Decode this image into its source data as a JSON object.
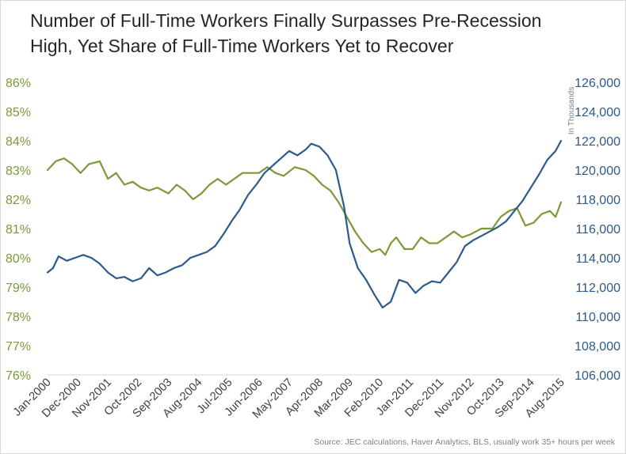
{
  "title_line1": "Number of Full-Time Workers Finally Surpasses Pre-Recession",
  "title_line2": "High, Yet Share of Full-Time Workers Yet to Recover",
  "source": "Source: JEC calculations, Haver Analytics, BLS, usually work 35+ hours per week",
  "chart_data": {
    "type": "line",
    "title": "Number of Full-Time Workers Finally Surpasses Pre-Recession High, Yet Share of Full-Time Workers Yet to Recover",
    "x_range": [
      "2000-01",
      "2015-08"
    ],
    "x_tick_labels": [
      "Jan-2000",
      "Dec-2000",
      "Nov-2001",
      "Oct-2002",
      "Sep-2003",
      "Aug-2004",
      "Jul-2005",
      "Jun-2006",
      "May-2007",
      "Apr-2008",
      "Mar-2009",
      "Feb-2010",
      "Jan-2011",
      "Dec-2011",
      "Nov-2012",
      "Oct-2013",
      "Sep-2014",
      "Aug-2015"
    ],
    "y_left": {
      "ticks": [
        "76%",
        "77%",
        "78%",
        "79%",
        "80%",
        "81%",
        "82%",
        "83%",
        "84%",
        "85%",
        "86%"
      ],
      "ylim": [
        76,
        86
      ],
      "color": "#7a9a3a"
    },
    "y_right": {
      "ticks": [
        "106,000",
        "108,000",
        "110,000",
        "112,000",
        "114,000",
        "116,000",
        "118,000",
        "120,000",
        "122,000",
        "124,000",
        "126,000"
      ],
      "ylim": [
        106000,
        126000
      ],
      "label": "In Thousands",
      "color": "#2e5a8a"
    },
    "grid": false,
    "legend": "none",
    "series": [
      {
        "axis": "left",
        "color": "#7a9a3a",
        "keypoints": [
          [
            "2000-01",
            83.0
          ],
          [
            "2000-04",
            83.3
          ],
          [
            "2000-07",
            83.4
          ],
          [
            "2000-10",
            83.2
          ],
          [
            "2001-01",
            82.9
          ],
          [
            "2001-04",
            83.2
          ],
          [
            "2001-08",
            83.3
          ],
          [
            "2001-11",
            82.7
          ],
          [
            "2002-02",
            82.9
          ],
          [
            "2002-05",
            82.5
          ],
          [
            "2002-08",
            82.6
          ],
          [
            "2002-11",
            82.4
          ],
          [
            "2003-02",
            82.3
          ],
          [
            "2003-05",
            82.4
          ],
          [
            "2003-09",
            82.2
          ],
          [
            "2003-12",
            82.5
          ],
          [
            "2004-03",
            82.3
          ],
          [
            "2004-06",
            82.0
          ],
          [
            "2004-09",
            82.2
          ],
          [
            "2004-12",
            82.5
          ],
          [
            "2005-03",
            82.7
          ],
          [
            "2005-06",
            82.5
          ],
          [
            "2005-09",
            82.7
          ],
          [
            "2005-12",
            82.9
          ],
          [
            "2006-03",
            82.9
          ],
          [
            "2006-06",
            82.9
          ],
          [
            "2006-09",
            83.1
          ],
          [
            "2006-12",
            82.9
          ],
          [
            "2007-03",
            82.8
          ],
          [
            "2007-07",
            83.1
          ],
          [
            "2007-11",
            83.0
          ],
          [
            "2008-02",
            82.8
          ],
          [
            "2008-05",
            82.5
          ],
          [
            "2008-08",
            82.3
          ],
          [
            "2008-11",
            81.9
          ],
          [
            "2009-02",
            81.4
          ],
          [
            "2009-05",
            80.9
          ],
          [
            "2009-08",
            80.5
          ],
          [
            "2009-11",
            80.2
          ],
          [
            "2010-02",
            80.3
          ],
          [
            "2010-04",
            80.1
          ],
          [
            "2010-06",
            80.5
          ],
          [
            "2010-08",
            80.7
          ],
          [
            "2010-11",
            80.3
          ],
          [
            "2011-02",
            80.3
          ],
          [
            "2011-05",
            80.7
          ],
          [
            "2011-08",
            80.5
          ],
          [
            "2011-11",
            80.5
          ],
          [
            "2012-02",
            80.7
          ],
          [
            "2012-05",
            80.9
          ],
          [
            "2012-08",
            80.7
          ],
          [
            "2012-11",
            80.8
          ],
          [
            "2013-03",
            81.0
          ],
          [
            "2013-07",
            81.0
          ],
          [
            "2013-10",
            81.4
          ],
          [
            "2014-01",
            81.6
          ],
          [
            "2014-04",
            81.7
          ],
          [
            "2014-07",
            81.1
          ],
          [
            "2014-10",
            81.2
          ],
          [
            "2015-01",
            81.5
          ],
          [
            "2015-04",
            81.6
          ],
          [
            "2015-06",
            81.4
          ],
          [
            "2015-08",
            81.9
          ]
        ]
      },
      {
        "axis": "right",
        "color": "#2e5a8a",
        "keypoints": [
          [
            "2000-01",
            113.0
          ],
          [
            "2000-03",
            113.3
          ],
          [
            "2000-05",
            114.1
          ],
          [
            "2000-08",
            113.8
          ],
          [
            "2000-11",
            114.0
          ],
          [
            "2001-02",
            114.2
          ],
          [
            "2001-05",
            114.0
          ],
          [
            "2001-08",
            113.6
          ],
          [
            "2001-11",
            113.0
          ],
          [
            "2002-02",
            112.6
          ],
          [
            "2002-05",
            112.7
          ],
          [
            "2002-08",
            112.4
          ],
          [
            "2002-11",
            112.6
          ],
          [
            "2003-02",
            113.3
          ],
          [
            "2003-05",
            112.8
          ],
          [
            "2003-08",
            113.0
          ],
          [
            "2003-11",
            113.3
          ],
          [
            "2004-02",
            113.5
          ],
          [
            "2004-05",
            114.0
          ],
          [
            "2004-08",
            114.2
          ],
          [
            "2004-11",
            114.4
          ],
          [
            "2005-02",
            114.8
          ],
          [
            "2005-05",
            115.6
          ],
          [
            "2005-08",
            116.5
          ],
          [
            "2005-11",
            117.3
          ],
          [
            "2006-02",
            118.3
          ],
          [
            "2006-05",
            119.0
          ],
          [
            "2006-08",
            119.8
          ],
          [
            "2006-11",
            120.3
          ],
          [
            "2007-02",
            120.8
          ],
          [
            "2007-05",
            121.3
          ],
          [
            "2007-08",
            121.0
          ],
          [
            "2007-11",
            121.4
          ],
          [
            "2008-01",
            121.8
          ],
          [
            "2008-04",
            121.6
          ],
          [
            "2008-07",
            121.0
          ],
          [
            "2008-10",
            120.0
          ],
          [
            "2009-01",
            117.5
          ],
          [
            "2009-03",
            115.0
          ],
          [
            "2009-06",
            113.3
          ],
          [
            "2009-09",
            112.5
          ],
          [
            "2009-12",
            111.5
          ],
          [
            "2010-03",
            110.6
          ],
          [
            "2010-06",
            111.0
          ],
          [
            "2010-09",
            112.5
          ],
          [
            "2010-12",
            112.3
          ],
          [
            "2011-03",
            111.6
          ],
          [
            "2011-06",
            112.1
          ],
          [
            "2011-09",
            112.4
          ],
          [
            "2011-12",
            112.3
          ],
          [
            "2012-03",
            113.0
          ],
          [
            "2012-06",
            113.7
          ],
          [
            "2012-09",
            114.8
          ],
          [
            "2012-12",
            115.2
          ],
          [
            "2013-03",
            115.5
          ],
          [
            "2013-06",
            115.8
          ],
          [
            "2013-09",
            116.1
          ],
          [
            "2013-12",
            116.5
          ],
          [
            "2014-03",
            117.2
          ],
          [
            "2014-06",
            117.9
          ],
          [
            "2014-09",
            118.8
          ],
          [
            "2014-12",
            119.7
          ],
          [
            "2015-03",
            120.7
          ],
          [
            "2015-06",
            121.3
          ],
          [
            "2015-08",
            122.0
          ]
        ]
      }
    ]
  }
}
